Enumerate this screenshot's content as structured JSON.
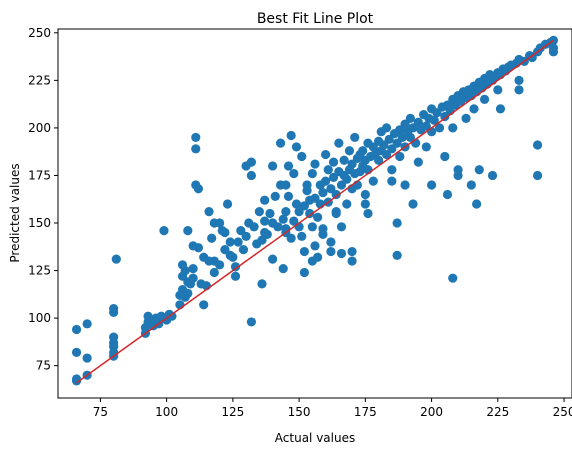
{
  "chart_data": {
    "type": "scatter",
    "title": "Best Fit Line Plot",
    "xlabel": "Actual values",
    "ylabel": "Predicted values",
    "xlim": [
      59,
      253
    ],
    "ylim": [
      58,
      252
    ],
    "xticks": [
      75,
      100,
      125,
      150,
      175,
      200,
      225,
      250
    ],
    "yticks": [
      75,
      100,
      125,
      150,
      175,
      200,
      225,
      250
    ],
    "grid": false,
    "colors": {
      "points": "#1f77b4",
      "fit_line": "#d62728"
    },
    "fit_line": {
      "x": [
        66,
        246
      ],
      "y": [
        66,
        246
      ]
    },
    "series": [
      {
        "marker": "circle",
        "points": [
          [
            66,
            67
          ],
          [
            66,
            68
          ],
          [
            66,
            82
          ],
          [
            66,
            94
          ],
          [
            70,
            97
          ],
          [
            70,
            79
          ],
          [
            70,
            70
          ],
          [
            80,
            80
          ],
          [
            80,
            82
          ],
          [
            80,
            85
          ],
          [
            80,
            87
          ],
          [
            80,
            90
          ],
          [
            80,
            103
          ],
          [
            80,
            105
          ],
          [
            81,
            131
          ],
          [
            92,
            92
          ],
          [
            92,
            95
          ],
          [
            93,
            98
          ],
          [
            93,
            101
          ],
          [
            95,
            96
          ],
          [
            96,
            100
          ],
          [
            97,
            97
          ],
          [
            98,
            101
          ],
          [
            99,
            146
          ],
          [
            100,
            99
          ],
          [
            101,
            102
          ],
          [
            102,
            101
          ],
          [
            105,
            107
          ],
          [
            105,
            112
          ],
          [
            106,
            115
          ],
          [
            106,
            122
          ],
          [
            106,
            128
          ],
          [
            107,
            111
          ],
          [
            107,
            125
          ],
          [
            108,
            113
          ],
          [
            108,
            119
          ],
          [
            109,
            118
          ],
          [
            110,
            121
          ],
          [
            110,
            126
          ],
          [
            110,
            138
          ],
          [
            111,
            170
          ],
          [
            111,
            195
          ],
          [
            111,
            189
          ],
          [
            112,
            137
          ],
          [
            112,
            168
          ],
          [
            113,
            118
          ],
          [
            114,
            107
          ],
          [
            114,
            132
          ],
          [
            115,
            117
          ],
          [
            116,
            156
          ],
          [
            117,
            142
          ],
          [
            118,
            130
          ],
          [
            118,
            124
          ],
          [
            120,
            128
          ],
          [
            121,
            146
          ],
          [
            122,
            136
          ],
          [
            123,
            160
          ],
          [
            124,
            133
          ],
          [
            124,
            140
          ],
          [
            125,
            132
          ],
          [
            126,
            127
          ],
          [
            127,
            140
          ],
          [
            128,
            146
          ],
          [
            129,
            136
          ],
          [
            130,
            143
          ],
          [
            131,
            150
          ],
          [
            132,
            182
          ],
          [
            132,
            175
          ],
          [
            132,
            98
          ],
          [
            133,
            148
          ],
          [
            134,
            139
          ],
          [
            135,
            156
          ],
          [
            136,
            141
          ],
          [
            137,
            151
          ],
          [
            137,
            162
          ],
          [
            138,
            144
          ],
          [
            139,
            155
          ],
          [
            140,
            150
          ],
          [
            140,
            131
          ],
          [
            141,
            164
          ],
          [
            142,
            148
          ],
          [
            143,
            192
          ],
          [
            143,
            170
          ],
          [
            144,
            152
          ],
          [
            144,
            126
          ],
          [
            145,
            156
          ],
          [
            145,
            145
          ],
          [
            146,
            164
          ],
          [
            146,
            180
          ],
          [
            147,
            142
          ],
          [
            148,
            151
          ],
          [
            148,
            176
          ],
          [
            149,
            160
          ],
          [
            150,
            148
          ],
          [
            150,
            156
          ],
          [
            151,
            143
          ],
          [
            151,
            185
          ],
          [
            152,
            159
          ],
          [
            152,
            135
          ],
          [
            153,
            167
          ],
          [
            153,
            170
          ],
          [
            154,
            155
          ],
          [
            154,
            162
          ],
          [
            155,
            176
          ],
          [
            155,
            148
          ],
          [
            156,
            163
          ],
          [
            156,
            181
          ],
          [
            157,
            153
          ],
          [
            157,
            132
          ],
          [
            158,
            170
          ],
          [
            158,
            160
          ],
          [
            159,
            166
          ],
          [
            159,
            144
          ],
          [
            160,
            172
          ],
          [
            160,
            186
          ],
          [
            161,
            161
          ],
          [
            161,
            178
          ],
          [
            162,
            168
          ],
          [
            162,
            140
          ],
          [
            163,
            174
          ],
          [
            163,
            182
          ],
          [
            164,
            165
          ],
          [
            164,
            156
          ],
          [
            165,
            177
          ],
          [
            165,
            192
          ],
          [
            166,
            170
          ],
          [
            166,
            148
          ],
          [
            167,
            183
          ],
          [
            167,
            175
          ],
          [
            168,
            173
          ],
          [
            168,
            160
          ],
          [
            169,
            178
          ],
          [
            169,
            188
          ],
          [
            170,
            181
          ],
          [
            170,
            168
          ],
          [
            171,
            176
          ],
          [
            171,
            195
          ],
          [
            172,
            184
          ],
          [
            172,
            170
          ],
          [
            173,
            177
          ],
          [
            173,
            186
          ],
          [
            174,
            188
          ],
          [
            174,
            180
          ],
          [
            175,
            183
          ],
          [
            175,
            165
          ],
          [
            176,
            192
          ],
          [
            176,
            178
          ],
          [
            177,
            185
          ],
          [
            178,
            190
          ],
          [
            178,
            172
          ],
          [
            179,
            187
          ],
          [
            180,
            193
          ],
          [
            180,
            183
          ],
          [
            181,
            188
          ],
          [
            181,
            198
          ],
          [
            182,
            191
          ],
          [
            183,
            186
          ],
          [
            183,
            200
          ],
          [
            184,
            194
          ],
          [
            185,
            189
          ],
          [
            185,
            178
          ],
          [
            186,
            197
          ],
          [
            187,
            192
          ],
          [
            188,
            199
          ],
          [
            188,
            185
          ],
          [
            189,
            195
          ],
          [
            190,
            202
          ],
          [
            190,
            190
          ],
          [
            191,
            198
          ],
          [
            192,
            195
          ],
          [
            192,
            205
          ],
          [
            193,
            200
          ],
          [
            194,
            192
          ],
          [
            195,
            203
          ],
          [
            195,
            182
          ],
          [
            196,
            199
          ],
          [
            197,
            207
          ],
          [
            198,
            201
          ],
          [
            198,
            190
          ],
          [
            199,
            205
          ],
          [
            200,
            198
          ],
          [
            200,
            210
          ],
          [
            201,
            204
          ],
          [
            202,
            208
          ],
          [
            203,
            200
          ],
          [
            204,
            211
          ],
          [
            205,
            206
          ],
          [
            205,
            185
          ],
          [
            206,
            212
          ],
          [
            207,
            209
          ],
          [
            208,
            215
          ],
          [
            208,
            200
          ],
          [
            209,
            212
          ],
          [
            210,
            217
          ],
          [
            210,
            178
          ],
          [
            211,
            214
          ],
          [
            212,
            219
          ],
          [
            213,
            216
          ],
          [
            213,
            205
          ],
          [
            214,
            220
          ],
          [
            215,
            217
          ],
          [
            216,
            222
          ],
          [
            216,
            210
          ],
          [
            217,
            219
          ],
          [
            218,
            224
          ],
          [
            219,
            221
          ],
          [
            220,
            226
          ],
          [
            221,
            223
          ],
          [
            222,
            228
          ],
          [
            223,
            225
          ],
          [
            224,
            227
          ],
          [
            225,
            229
          ],
          [
            226,
            228
          ],
          [
            227,
            231
          ],
          [
            228,
            230
          ],
          [
            229,
            232
          ],
          [
            230,
            233
          ],
          [
            232,
            234
          ],
          [
            233,
            236
          ],
          [
            235,
            235
          ],
          [
            237,
            238
          ],
          [
            238,
            237
          ],
          [
            240,
            240
          ],
          [
            241,
            242
          ],
          [
            243,
            244
          ],
          [
            245,
            245
          ],
          [
            246,
            246
          ],
          [
            246,
            240
          ],
          [
            246,
            242
          ],
          [
            240,
            191
          ],
          [
            240,
            175
          ],
          [
            233,
            220
          ],
          [
            233,
            225
          ],
          [
            225,
            220
          ],
          [
            226,
            210
          ],
          [
            220,
            215
          ],
          [
            217,
            160
          ],
          [
            223,
            175
          ],
          [
            215,
            170
          ],
          [
            218,
            178
          ],
          [
            206,
            165
          ],
          [
            200,
            170
          ],
          [
            187,
            133
          ],
          [
            208,
            121
          ],
          [
            210,
            175
          ],
          [
            193,
            160
          ],
          [
            187,
            150
          ],
          [
            190,
            170
          ],
          [
            185,
            172
          ],
          [
            175,
            160
          ],
          [
            166,
            134
          ],
          [
            170,
            130
          ],
          [
            170,
            135
          ],
          [
            176,
            155
          ],
          [
            164,
            155
          ],
          [
            162,
            135
          ],
          [
            159,
            147
          ],
          [
            156,
            138
          ],
          [
            155,
            130
          ],
          [
            152,
            124
          ],
          [
            145,
            170
          ],
          [
            140,
            150
          ],
          [
            137,
            145
          ],
          [
            130,
            180
          ],
          [
            118,
            150
          ],
          [
            108,
            146
          ],
          [
            116,
            130
          ],
          [
            120,
            150
          ],
          [
            126,
            122
          ],
          [
            136,
            118
          ],
          [
            145,
            147
          ],
          [
            149,
            190
          ],
          [
            147,
            196
          ],
          [
            140,
            180
          ],
          [
            122,
            145
          ]
        ]
      }
    ]
  }
}
